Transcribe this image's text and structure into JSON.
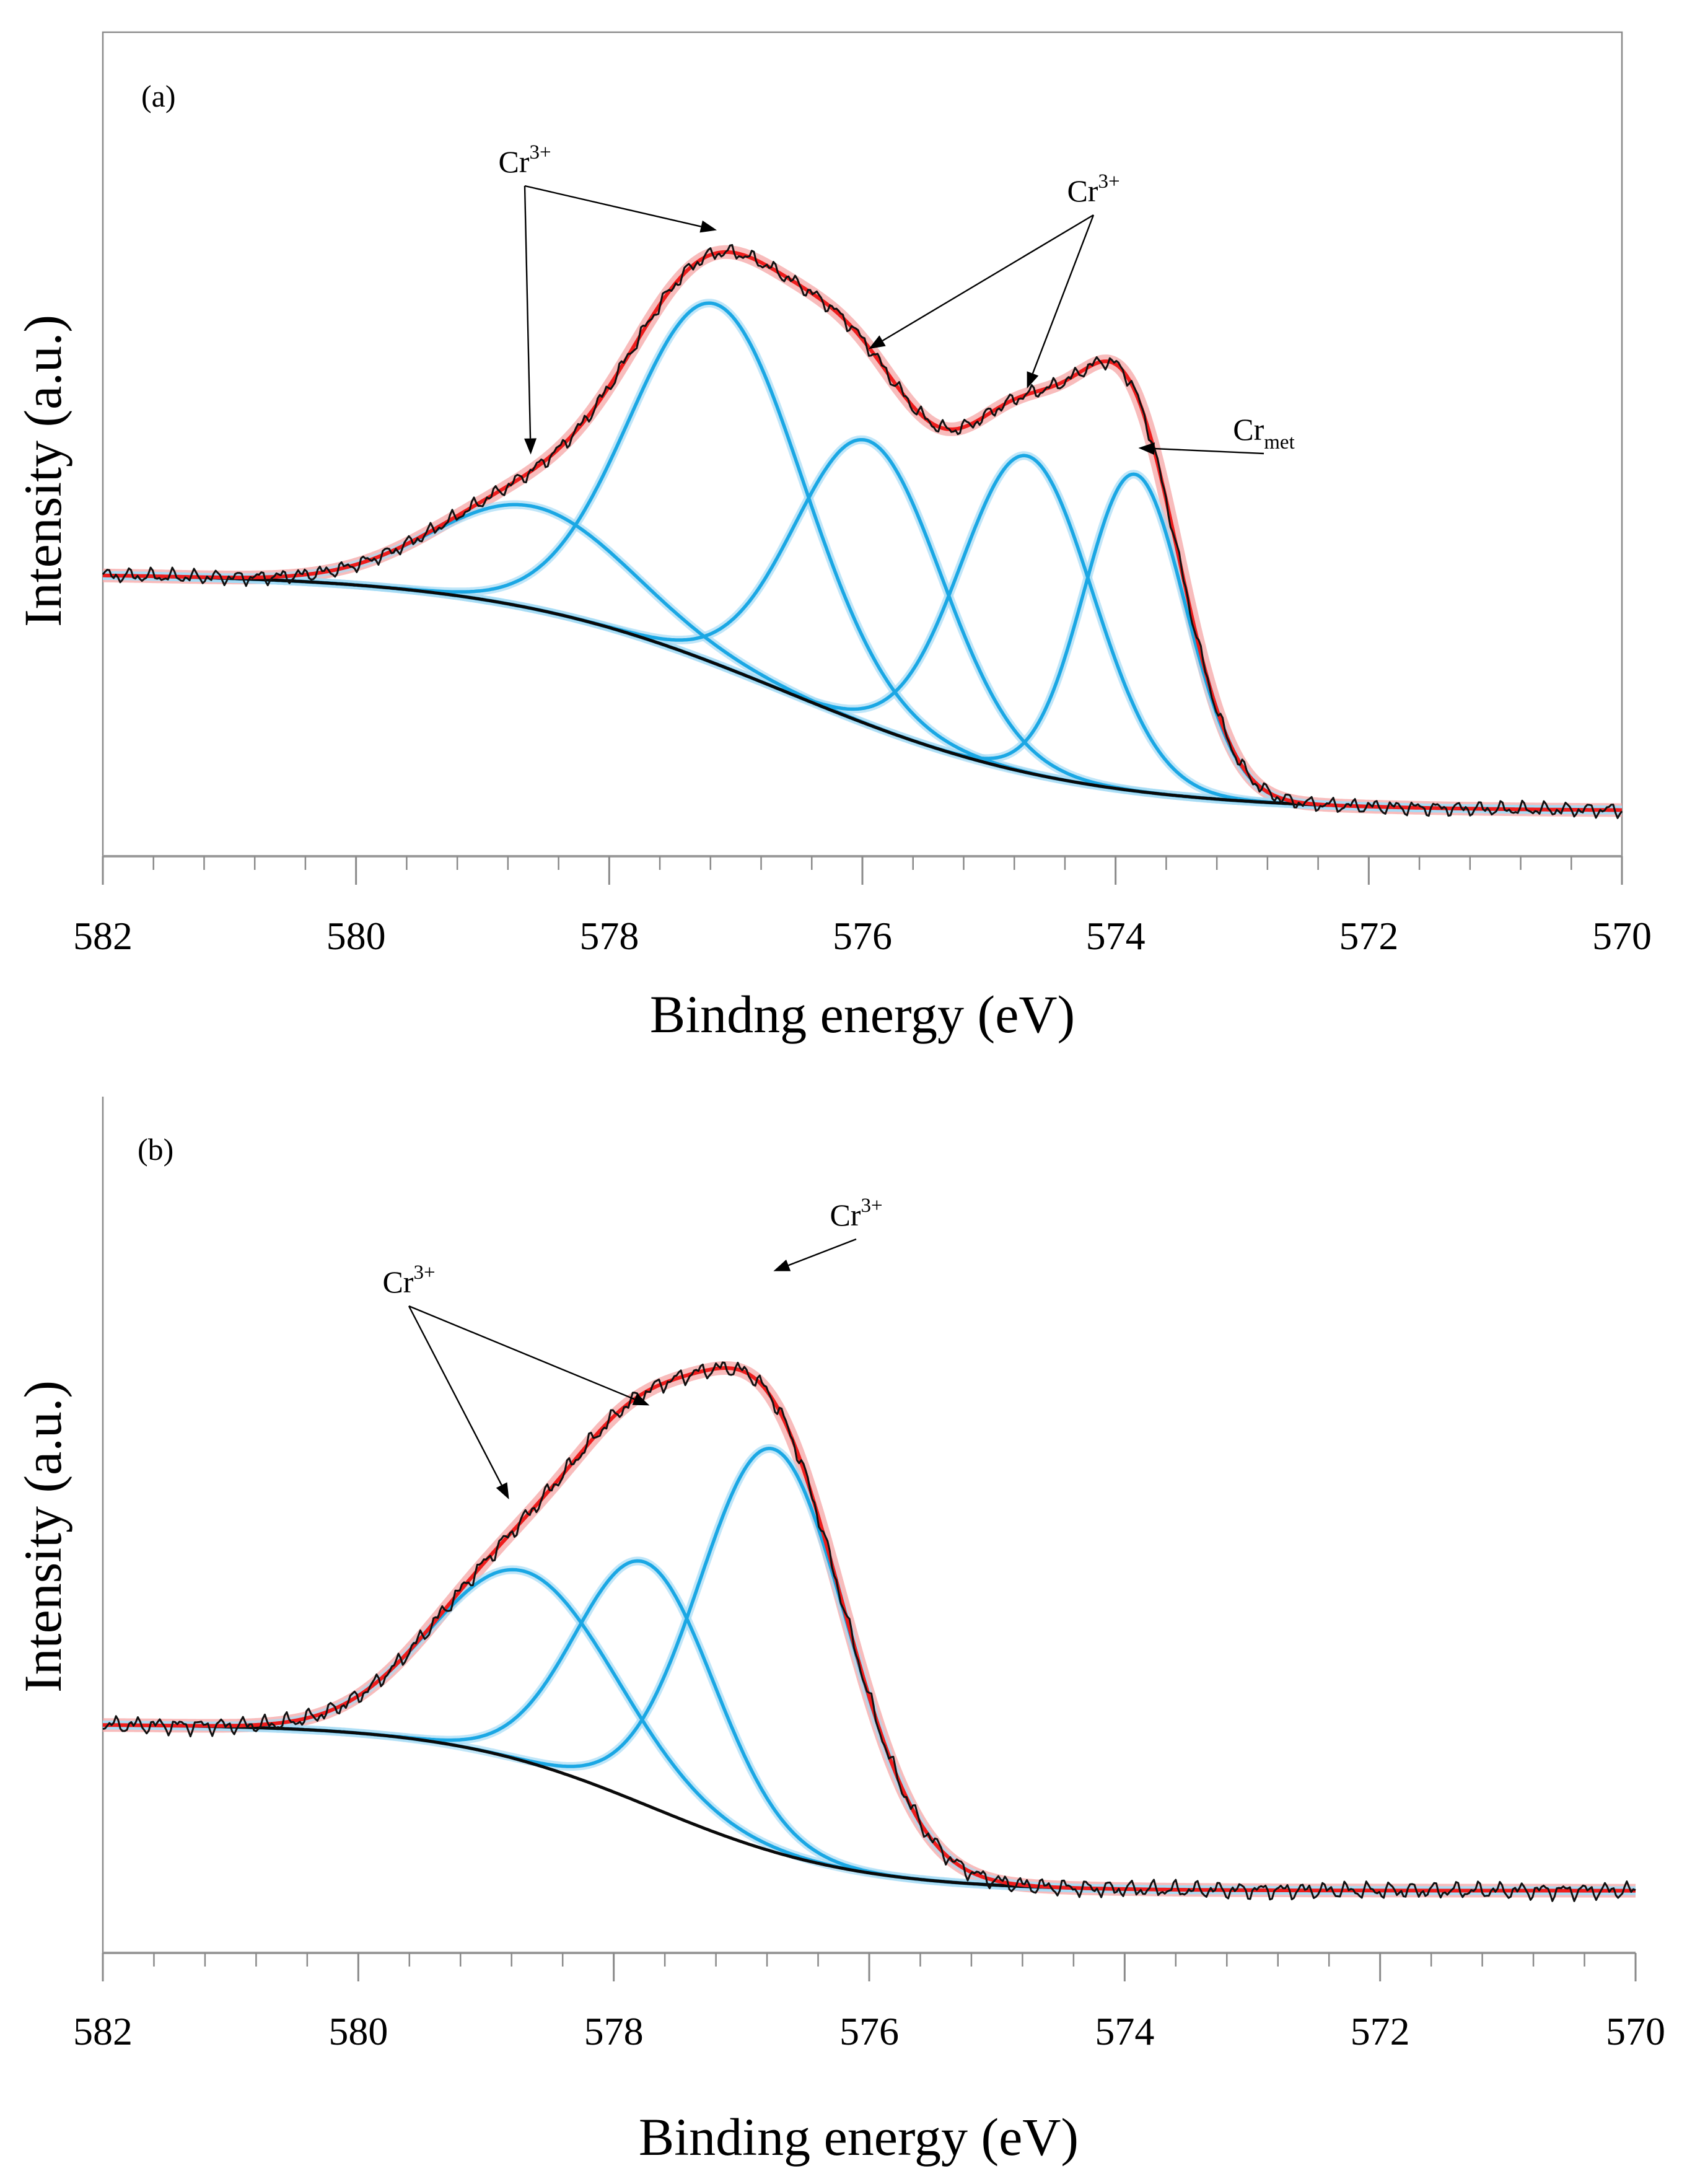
{
  "chart_data": [
    {
      "type": "line",
      "panel_label": "(a)",
      "xlabel": "Bindng energy (eV)",
      "ylabel": "Intensity (a.u.)",
      "xlim": [
        582,
        570
      ],
      "x_reversed": true,
      "y_ticks_shown": false,
      "ylim": [
        0,
        1.2
      ],
      "xticks": [
        582,
        580,
        578,
        576,
        574,
        572,
        570
      ],
      "minor_tick_step": 0.4,
      "colors": {
        "raw": "#111111",
        "envelope": "#ee1c1c",
        "envelope_glow": "#f6a5a5",
        "component": "#1aa7e4",
        "component_glow": "#a7dcf5",
        "background": "#0a0a0a"
      },
      "background_curve": {
        "high": 0.38,
        "low": 0.02,
        "center": 576.6,
        "width": 1.15
      },
      "components": [
        {
          "center": 578.6,
          "amplitude": 0.155,
          "sigma": 0.78
        },
        {
          "center": 577.15,
          "amplitude": 0.545,
          "sigma": 0.68
        },
        {
          "center": 575.95,
          "amplitude": 0.43,
          "sigma": 0.58
        },
        {
          "center": 574.7,
          "amplitude": 0.48,
          "sigma": 0.52
        },
        {
          "center": 573.85,
          "amplitude": 0.48,
          "sigma": 0.4
        }
      ],
      "noise_amplitude": 0.007,
      "annotations": [
        {
          "text": "Cr",
          "sup": "3+",
          "sub": "",
          "targets": [
            [
              578.62,
              0.56
            ]
          ]
        },
        {
          "text": "Cr",
          "sup": "3+",
          "sub": "",
          "targets": [
            [
              577.15,
              0.9
            ]
          ]
        },
        {
          "text": "Cr",
          "sup": "3+",
          "sub": "",
          "targets": [
            [
              575.95,
              0.72
            ],
            [
              574.7,
              0.66
            ]
          ]
        },
        {
          "text": "Cr",
          "sub": "met",
          "sup": "",
          "targets": [
            [
              573.82,
              0.57
            ]
          ]
        }
      ]
    },
    {
      "type": "line",
      "panel_label": "(b)",
      "xlabel": "Binding energy (eV)",
      "ylabel": "Intensity (a.u.)",
      "xlim": [
        582,
        570
      ],
      "x_reversed": true,
      "y_ticks_shown": false,
      "ylim": [
        0,
        1.2
      ],
      "xticks": [
        582,
        580,
        578,
        576,
        574,
        572,
        570
      ],
      "minor_tick_step": 0.4,
      "colors": {
        "raw": "#111111",
        "envelope": "#ee1c1c",
        "envelope_glow": "#f6a5a5",
        "component": "#1aa7e4",
        "component_glow": "#a7dcf5",
        "background": "#0a0a0a"
      },
      "background_curve": {
        "high": 0.265,
        "low": 0.017,
        "center": 577.7,
        "width": 0.8
      },
      "components": [
        {
          "center": 578.7,
          "amplitude": 0.283,
          "sigma": 0.72
        },
        {
          "center": 577.75,
          "amplitude": 0.361,
          "sigma": 0.54
        },
        {
          "center": 576.75,
          "amplitude": 0.6,
          "sigma": 0.58
        }
      ],
      "noise_amplitude": 0.008,
      "annotations": [
        {
          "text": "Cr",
          "sup": "3+",
          "sub": "",
          "targets": [
            [
              578.82,
              0.6
            ],
            [
              577.72,
              0.74
            ]
          ]
        },
        {
          "text": "Cr",
          "sup": "3+",
          "sub": "",
          "targets": [
            [
              576.75,
              0.94
            ]
          ]
        }
      ]
    }
  ]
}
